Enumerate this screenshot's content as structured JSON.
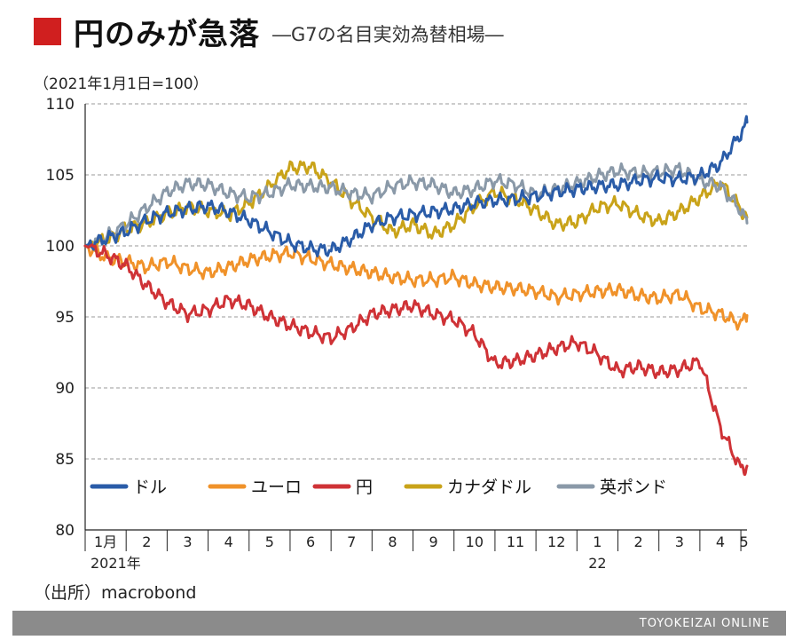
{
  "header": {
    "title": "円のみが急落",
    "subtitle": "―G7の名目実効為替相場―",
    "unit_note": "（2021年1月1日=100）",
    "accent_color": "#d01f1f"
  },
  "chart_data": {
    "type": "line",
    "title": "円のみが急落",
    "subtitle": "―G7の名目実効為替相場―",
    "ylabel": "（2021年1月1日=100）",
    "ylim": [
      80,
      110
    ],
    "yticks": [
      "110",
      "105",
      "100",
      "95",
      "90",
      "85",
      "80"
    ],
    "ytick_values": [
      110,
      105,
      100,
      95,
      90,
      85,
      80
    ],
    "xlim": [
      0,
      16.15
    ],
    "month_labels": [
      "1月",
      "2",
      "3",
      "4",
      "5",
      "6",
      "7",
      "8",
      "9",
      "10",
      "11",
      "12",
      "1",
      "2",
      "3",
      "4",
      "5"
    ],
    "year_labels": [
      {
        "text": "2021年",
        "month_index": 0
      },
      {
        "text": "22",
        "month_index": 12
      }
    ],
    "grid": true,
    "legend_position": "bottom-left",
    "series": [
      {
        "name": "ドル",
        "color": "#2a5ca8",
        "x": [
          0,
          0.5,
          1,
          1.5,
          2,
          2.5,
          3,
          3.5,
          4,
          4.5,
          5,
          5.5,
          6,
          6.5,
          7,
          7.5,
          8,
          8.5,
          9,
          9.5,
          10,
          10.5,
          11,
          11.5,
          12,
          12.5,
          13,
          13.5,
          14,
          14.5,
          15,
          15.5,
          16,
          16.15
        ],
        "y": [
          100,
          100.5,
          101,
          101.8,
          102.3,
          102.6,
          102.8,
          102.4,
          101.8,
          101,
          100.2,
          99.8,
          99.7,
          100.5,
          101.5,
          102,
          102.2,
          102.4,
          102.6,
          103,
          103.2,
          103.3,
          103.5,
          103.8,
          104,
          104.2,
          104.3,
          104.6,
          104.8,
          104.7,
          104.9,
          105.8,
          107.9,
          108.7
        ]
      },
      {
        "name": "ユーロ",
        "color": "#f0922a",
        "x": [
          0,
          0.5,
          1,
          1.5,
          2,
          2.5,
          3,
          3.5,
          4,
          4.5,
          5,
          5.5,
          6,
          6.5,
          7,
          7.5,
          8,
          8.5,
          9,
          9.5,
          10,
          10.5,
          11,
          11.5,
          12,
          12.5,
          13,
          13.5,
          14,
          14.5,
          15,
          15.5,
          16,
          16.15
        ],
        "y": [
          100,
          99.2,
          98.9,
          98.5,
          98.9,
          98.4,
          98.1,
          98.5,
          99,
          99.3,
          99.5,
          99.1,
          98.7,
          98.4,
          98.1,
          97.8,
          97.6,
          97.6,
          97.8,
          97.3,
          97.1,
          97,
          96.8,
          96.4,
          96.6,
          96.8,
          96.9,
          96.5,
          96.3,
          96.6,
          95.6,
          95.2,
          94.5,
          95.1
        ]
      },
      {
        "name": "円",
        "color": "#cf3236",
        "x": [
          0,
          0.5,
          1,
          1.5,
          2,
          2.5,
          3,
          3.5,
          4,
          4.5,
          5,
          5.5,
          6,
          6.5,
          7,
          7.5,
          8,
          8.5,
          9,
          9.5,
          10,
          10.5,
          11,
          11.5,
          12,
          12.5,
          13,
          13.5,
          14,
          14.5,
          15,
          15.5,
          16,
          16.15
        ],
        "y": [
          100,
          99.4,
          98.6,
          97.2,
          96,
          95.2,
          95.5,
          96.2,
          95.8,
          95,
          94.4,
          93.9,
          93.5,
          94.2,
          95.2,
          95.5,
          95.8,
          95.2,
          94.8,
          93.8,
          91.7,
          91.9,
          92.3,
          92.8,
          93.2,
          92.4,
          91.2,
          91.5,
          91.1,
          91.3,
          91.9,
          87.2,
          84.3,
          84.5
        ]
      },
      {
        "name": "カナダドル",
        "color": "#c9a319",
        "x": [
          0,
          0.5,
          1,
          1.5,
          2,
          2.5,
          3,
          3.5,
          4,
          4.5,
          5,
          5.5,
          6,
          6.5,
          7,
          7.5,
          8,
          8.5,
          9,
          9.5,
          10,
          10.5,
          11,
          11.5,
          12,
          12.5,
          13,
          13.5,
          14,
          14.5,
          15,
          15.5,
          16,
          16.15
        ],
        "y": [
          100,
          100.4,
          101.2,
          101.6,
          102.3,
          102.7,
          102.5,
          102.2,
          103,
          104.2,
          105.5,
          105.6,
          104.5,
          103.2,
          102,
          101,
          101.5,
          100.8,
          101.5,
          102.8,
          103.8,
          103.3,
          102.5,
          101.5,
          101.7,
          102.7,
          103,
          102.2,
          101.7,
          102.4,
          103.4,
          104.5,
          102.6,
          102
        ]
      },
      {
        "name": "英ポンド",
        "color": "#8a99a8",
        "x": [
          0,
          0.5,
          1,
          1.5,
          2,
          2.5,
          3,
          3.5,
          4,
          4.5,
          5,
          5.5,
          6,
          6.5,
          7,
          7.5,
          8,
          8.5,
          9,
          9.5,
          10,
          10.5,
          11,
          11.5,
          12,
          12.5,
          13,
          13.5,
          14,
          14.5,
          15,
          15.5,
          16,
          16.15
        ],
        "y": [
          100,
          100.6,
          101.5,
          102.7,
          103.8,
          104.4,
          104.3,
          103.7,
          103.4,
          103.7,
          104.3,
          104.2,
          104.1,
          103.7,
          103.5,
          104.2,
          104.5,
          104.3,
          103.7,
          104,
          104.6,
          104.3,
          103.6,
          104,
          104.4,
          104.9,
          105.3,
          105.1,
          105.2,
          105.4,
          104.6,
          104.2,
          102.5,
          101.6
        ]
      }
    ]
  },
  "source": "（出所）macrobond",
  "footer": {
    "brand": "TOYOKEIZAI ONLINE"
  }
}
